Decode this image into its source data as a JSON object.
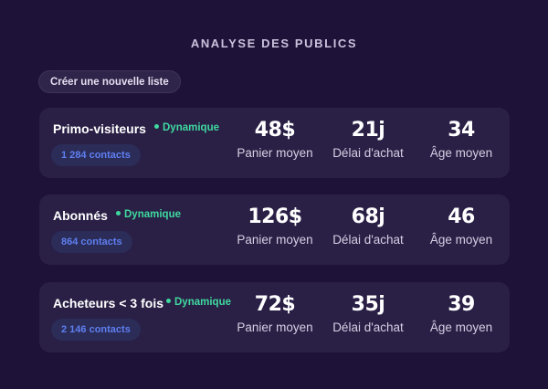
{
  "header": {
    "title": "ANALYSE DES PUBLICS"
  },
  "toolbar": {
    "new_list_label": "Créer une nouvelle liste"
  },
  "colors": {
    "background": "#1f1238",
    "card": "#2a1f45",
    "dynamic_accent": "#3fd9a0",
    "contacts_text": "#5f7ff0"
  },
  "audiences": [
    {
      "name": "Primo-visiteurs",
      "status": "Dynamique",
      "contacts": "1 284 contacts",
      "stats": [
        {
          "value": "48$",
          "label": "Panier moyen"
        },
        {
          "value": "21j",
          "label": "Délai d'achat"
        },
        {
          "value": "34",
          "label": "Âge moyen"
        }
      ]
    },
    {
      "name": "Abonnés",
      "status": "Dynamique",
      "contacts": "864 contacts",
      "stats": [
        {
          "value": "126$",
          "label": "Panier moyen"
        },
        {
          "value": "68j",
          "label": "Délai d'achat"
        },
        {
          "value": "46",
          "label": "Âge moyen"
        }
      ]
    },
    {
      "name": "Acheteurs < 3 fois",
      "status": "Dynamique",
      "contacts": "2 146 contacts",
      "stats": [
        {
          "value": "72$",
          "label": "Panier moyen"
        },
        {
          "value": "35j",
          "label": "Délai d'achat"
        },
        {
          "value": "39",
          "label": "Âge moyen"
        }
      ]
    }
  ]
}
